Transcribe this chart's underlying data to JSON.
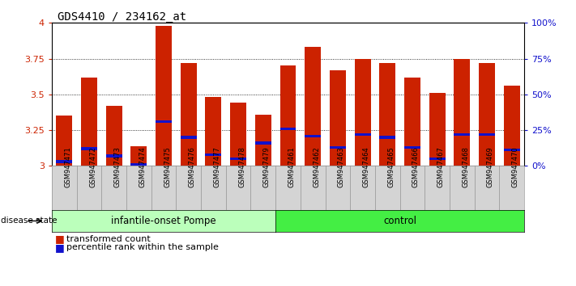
{
  "title": "GDS4410 / 234162_at",
  "samples": [
    "GSM947471",
    "GSM947472",
    "GSM947473",
    "GSM947474",
    "GSM947475",
    "GSM947476",
    "GSM947477",
    "GSM947478",
    "GSM947479",
    "GSM947461",
    "GSM947462",
    "GSM947463",
    "GSM947464",
    "GSM947465",
    "GSM947466",
    "GSM947467",
    "GSM947468",
    "GSM947469",
    "GSM947470"
  ],
  "red_values": [
    3.35,
    3.62,
    3.42,
    3.14,
    3.98,
    3.72,
    3.48,
    3.44,
    3.36,
    3.7,
    3.83,
    3.67,
    3.75,
    3.72,
    3.62,
    3.51,
    3.75,
    3.72,
    3.56
  ],
  "blue_values": [
    3.03,
    3.12,
    3.07,
    3.01,
    3.31,
    3.2,
    3.08,
    3.05,
    3.16,
    3.26,
    3.21,
    3.13,
    3.22,
    3.2,
    3.13,
    3.05,
    3.22,
    3.22,
    3.11
  ],
  "ymin": 3.0,
  "ymax": 4.0,
  "yticks": [
    3.0,
    3.25,
    3.5,
    3.75,
    4.0
  ],
  "ytick_labels": [
    "3",
    "3.25",
    "3.5",
    "3.75",
    "4"
  ],
  "right_yticks": [
    0,
    25,
    50,
    75,
    100
  ],
  "right_yticklabels": [
    "0%",
    "25%",
    "50%",
    "75%",
    "100%"
  ],
  "bar_color": "#cc2200",
  "blue_color": "#1111cc",
  "group1_label": "infantile-onset Pompe",
  "group2_label": "control",
  "group1_color_light": "#bbffbb",
  "group2_color_bright": "#44ee44",
  "group1_count": 9,
  "group2_count": 10,
  "legend_red": "transformed count",
  "legend_blue": "percentile rank within the sample",
  "disease_state_label": "disease state",
  "bar_width": 0.65,
  "xtick_bg": "#d4d4d4",
  "axis_label_color_red": "#cc2200",
  "axis_label_color_blue": "#1111cc"
}
